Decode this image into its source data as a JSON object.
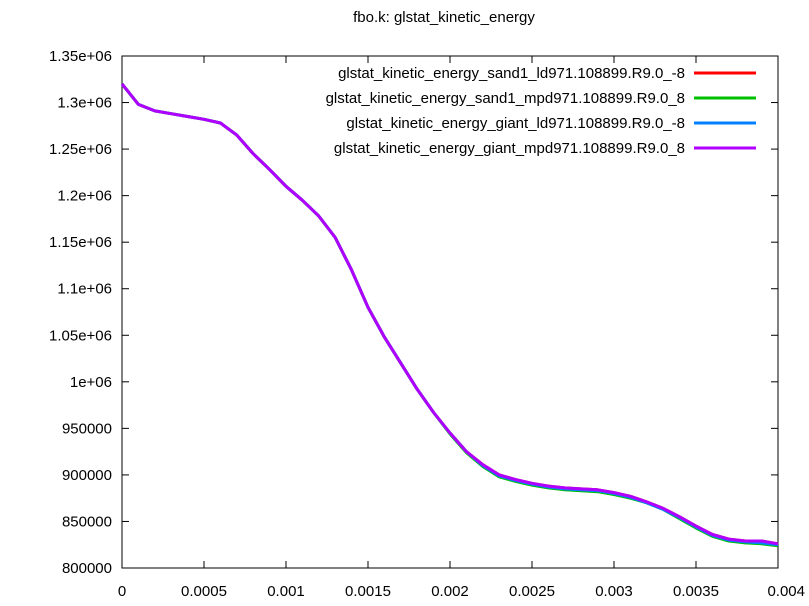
{
  "chart_data": {
    "type": "line",
    "title": "fbo.k: glstat_kinetic_energy",
    "xlabel": "",
    "ylabel": "",
    "xlim": [
      0,
      0.004
    ],
    "ylim": [
      800000,
      1350000
    ],
    "grid": false,
    "legend_position": "top-right",
    "x_ticks": [
      0,
      0.0005,
      0.001,
      0.0015,
      0.002,
      0.0025,
      0.003,
      0.0035,
      0.004
    ],
    "x_tick_labels": [
      "0",
      "0.0005",
      "0.001",
      "0.0015",
      "0.002",
      "0.0025",
      "0.003",
      "0.0035",
      "0.004"
    ],
    "y_ticks": [
      800000,
      850000,
      900000,
      950000,
      1000000,
      1050000,
      1100000,
      1150000,
      1200000,
      1250000,
      1300000,
      1350000
    ],
    "y_tick_labels": [
      "800000",
      "850000",
      "900000",
      "950000",
      "1e+06",
      "1.05e+06",
      "1.1e+06",
      "1.15e+06",
      "1.2e+06",
      "1.25e+06",
      "1.3e+06",
      "1.35e+06"
    ],
    "series": [
      {
        "name": "glstat_kinetic_energy_sand1_ld971.108899.R9.0_-8",
        "color": "#ff0000",
        "x": [
          0,
          0.0001,
          0.0002,
          0.0003,
          0.0004,
          0.0005,
          0.0006,
          0.0007,
          0.0008,
          0.0009,
          0.001,
          0.0011,
          0.0012,
          0.0013,
          0.0014,
          0.0015,
          0.0016,
          0.0017,
          0.0018,
          0.0019,
          0.002,
          0.0021,
          0.0022,
          0.0023,
          0.0024,
          0.0025,
          0.0026,
          0.0027,
          0.0028,
          0.0029,
          0.003,
          0.0031,
          0.0032,
          0.0033,
          0.0034,
          0.0035,
          0.0036,
          0.0037,
          0.0038,
          0.0039,
          0.004
        ],
        "y": [
          1320000,
          1298000,
          1291000,
          1288000,
          1285000,
          1282000,
          1278000,
          1265000,
          1245000,
          1228000,
          1210000,
          1195000,
          1178000,
          1155000,
          1120000,
          1080000,
          1048000,
          1020000,
          992000,
          967000,
          945000,
          925000,
          911000,
          900000,
          895000,
          891000,
          888000,
          886000,
          885000,
          884000,
          881000,
          877000,
          871000,
          864000,
          855000,
          845000,
          836000,
          831000,
          829000,
          829000,
          826000
        ]
      },
      {
        "name": "glstat_kinetic_energy_sand1_mpd971.108899.R9.0_8",
        "color": "#00c000",
        "x": [
          0,
          0.0001,
          0.0002,
          0.0003,
          0.0004,
          0.0005,
          0.0006,
          0.0007,
          0.0008,
          0.0009,
          0.001,
          0.0011,
          0.0012,
          0.0013,
          0.0014,
          0.0015,
          0.0016,
          0.0017,
          0.0018,
          0.0019,
          0.002,
          0.0021,
          0.0022,
          0.0023,
          0.0024,
          0.0025,
          0.0026,
          0.0027,
          0.0028,
          0.0029,
          0.003,
          0.0031,
          0.0032,
          0.0033,
          0.0034,
          0.0035,
          0.0036,
          0.0037,
          0.0038,
          0.0039,
          0.004
        ],
        "y": [
          1320000,
          1298000,
          1291000,
          1288000,
          1285000,
          1282000,
          1278000,
          1265000,
          1245000,
          1228000,
          1210000,
          1195000,
          1178000,
          1155000,
          1120000,
          1080000,
          1048000,
          1020000,
          992000,
          967000,
          944000,
          924000,
          909000,
          898000,
          893000,
          889000,
          886000,
          884000,
          883000,
          882000,
          879000,
          875000,
          870000,
          863000,
          853000,
          843000,
          834000,
          829000,
          827000,
          826000,
          824000
        ]
      },
      {
        "name": "glstat_kinetic_energy_giant_ld971.108899.R9.0_-8",
        "color": "#0080ff",
        "x": [
          0,
          0.0001,
          0.0002,
          0.0003,
          0.0004,
          0.0005,
          0.0006,
          0.0007,
          0.0008,
          0.0009,
          0.001,
          0.0011,
          0.0012,
          0.0013,
          0.0014,
          0.0015,
          0.0016,
          0.0017,
          0.0018,
          0.0019,
          0.002,
          0.0021,
          0.0022,
          0.0023,
          0.0024,
          0.0025,
          0.0026,
          0.0027,
          0.0028,
          0.0029,
          0.003,
          0.0031,
          0.0032,
          0.0033,
          0.0034,
          0.0035,
          0.0036,
          0.0037,
          0.0038,
          0.0039,
          0.004
        ],
        "y": [
          1320000,
          1298000,
          1291000,
          1288000,
          1285000,
          1282000,
          1278000,
          1265000,
          1245000,
          1228000,
          1210000,
          1195000,
          1178000,
          1155000,
          1120000,
          1080000,
          1048000,
          1020000,
          992000,
          967000,
          945000,
          925000,
          910000,
          899000,
          894000,
          890000,
          887000,
          885000,
          884000,
          883000,
          880000,
          876000,
          870000,
          863000,
          854000,
          844000,
          835000,
          830000,
          828000,
          827000,
          825000
        ]
      },
      {
        "name": "glstat_kinetic_energy_giant_mpd971.108899.R9.0_8",
        "color": "#b000ff",
        "x": [
          0,
          0.0001,
          0.0002,
          0.0003,
          0.0004,
          0.0005,
          0.0006,
          0.0007,
          0.0008,
          0.0009,
          0.001,
          0.0011,
          0.0012,
          0.0013,
          0.0014,
          0.0015,
          0.0016,
          0.0017,
          0.0018,
          0.0019,
          0.002,
          0.0021,
          0.0022,
          0.0023,
          0.0024,
          0.0025,
          0.0026,
          0.0027,
          0.0028,
          0.0029,
          0.003,
          0.0031,
          0.0032,
          0.0033,
          0.0034,
          0.0035,
          0.0036,
          0.0037,
          0.0038,
          0.0039,
          0.004
        ],
        "y": [
          1320000,
          1298000,
          1291000,
          1288000,
          1285000,
          1282000,
          1278000,
          1265000,
          1245000,
          1228000,
          1210000,
          1195000,
          1178000,
          1155000,
          1120000,
          1080000,
          1048000,
          1020000,
          992000,
          967000,
          945000,
          925000,
          911000,
          900000,
          895000,
          891000,
          888000,
          886000,
          885000,
          884000,
          881000,
          877000,
          871000,
          864000,
          855000,
          845000,
          836000,
          831000,
          829000,
          829000,
          826000
        ]
      }
    ]
  }
}
